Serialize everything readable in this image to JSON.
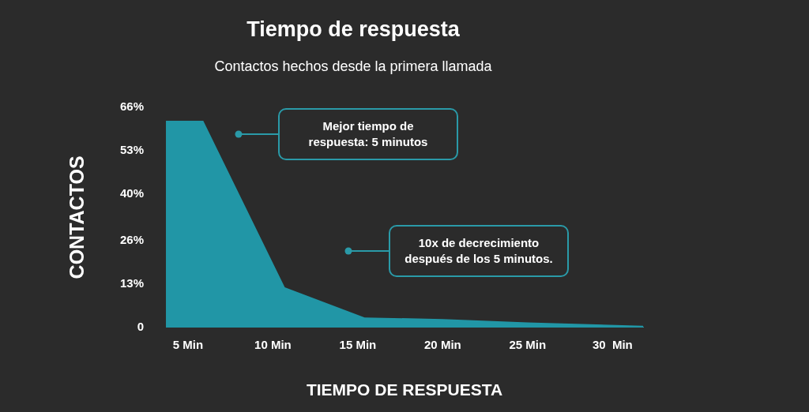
{
  "chart_data": {
    "type": "area",
    "title": "Tiempo de respuesta",
    "subtitle": "Contactos hechos desde la primera llamada",
    "xlabel": "TIEMPO DE RESPUESTA",
    "ylabel": "CONTACTOS",
    "x": [
      3.7,
      5.9,
      10.7,
      15.4,
      20,
      25,
      31.8
    ],
    "series": [
      {
        "color": "#2196a6",
        "values": [
          62,
          62,
          12,
          3,
          2.5,
          1.5,
          0.5
        ]
      }
    ],
    "xlim": [
      3.7,
      31.8
    ],
    "xticks": [
      {
        "value": 5,
        "label": "5 Min"
      },
      {
        "value": 10,
        "label": "10 Min"
      },
      {
        "value": 15,
        "label": "15 Min"
      },
      {
        "value": 20,
        "label": "20 Min"
      },
      {
        "value": 25,
        "label": "25 Min"
      },
      {
        "value": 30,
        "label": "30  Min"
      }
    ],
    "ylim": [
      0,
      66
    ],
    "yticks": [
      0,
      {
        "value": 13,
        "label": "13%"
      },
      {
        "value": 26,
        "label": "26%"
      },
      {
        "value": 40,
        "label": "40%"
      },
      {
        "value": 53,
        "label": "53%"
      },
      {
        "value": 66,
        "label": "66%"
      }
    ],
    "annotations": [
      "Mejor tiempo de respuesta: 5 minutos",
      "10x de decrecimiento después de los 5 minutos."
    ],
    "grid": false,
    "legend": false
  }
}
